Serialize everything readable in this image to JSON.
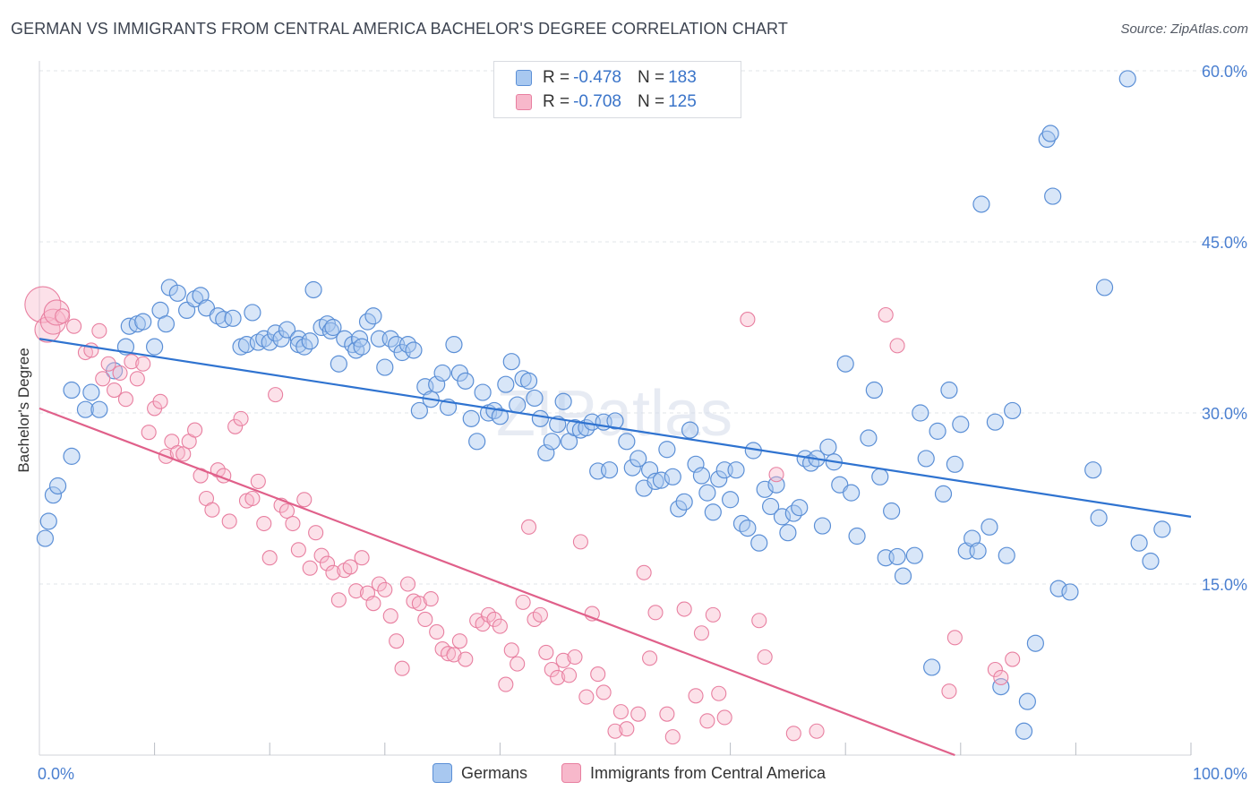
{
  "title": "GERMAN VS IMMIGRANTS FROM CENTRAL AMERICA BACHELOR'S DEGREE CORRELATION CHART",
  "source": "Source: ZipAtlas.com",
  "watermark": "ZIPatlas",
  "legend": {
    "rows": [
      {
        "r_label": "R =",
        "r_value": "-0.478",
        "n_label": "N =",
        "n_value": "183",
        "color": "#a8c8f0"
      },
      {
        "r_label": "R =",
        "r_value": "-0.708",
        "n_label": "N =",
        "n_value": "125",
        "color": "#f7b8cb"
      }
    ]
  },
  "bottom_legend": [
    "Germans",
    "Immigrants from Central America"
  ],
  "colors": {
    "blue_fill": "#a8c8f0",
    "blue_stroke": "#5b8fd6",
    "blue_line": "#2f73d0",
    "pink_fill": "#f7b8cb",
    "pink_stroke": "#e87fa0",
    "pink_line": "#e0608a",
    "axis_text": "#4a7fd0",
    "grid": "#e2e4e8"
  },
  "chart_data": {
    "type": "scatter",
    "title": "GERMAN VS IMMIGRANTS FROM CENTRAL AMERICA BACHELOR'S DEGREE CORRELATION CHART",
    "xlabel": "",
    "ylabel": "Bachelor's Degree",
    "xlim": [
      0,
      100
    ],
    "ylim": [
      0,
      60
    ],
    "x_tick_labels": [
      "0.0%",
      "100.0%"
    ],
    "y_ticks": [
      15,
      30,
      45,
      60
    ],
    "y_tick_labels": [
      "15.0%",
      "30.0%",
      "45.0%",
      "60.0%"
    ],
    "grid": true,
    "legend_position": "top-center",
    "series": [
      {
        "name": "Germans",
        "r": -0.478,
        "n": 183,
        "trend": {
          "x": [
            0,
            100
          ],
          "y": [
            36.5,
            20.9
          ]
        },
        "points": [
          [
            0.5,
            19.0
          ],
          [
            0.8,
            20.5
          ],
          [
            1.2,
            22.8
          ],
          [
            1.6,
            23.6
          ],
          [
            2.8,
            26.2
          ],
          [
            2.8,
            32.0
          ],
          [
            4.0,
            30.3
          ],
          [
            4.5,
            31.8
          ],
          [
            5.2,
            30.3
          ],
          [
            6.5,
            33.7
          ],
          [
            7.5,
            35.8
          ],
          [
            7.8,
            37.6
          ],
          [
            8.5,
            37.8
          ],
          [
            9.0,
            38.0
          ],
          [
            10.0,
            35.8
          ],
          [
            10.5,
            39.0
          ],
          [
            11.0,
            37.8
          ],
          [
            11.3,
            41.0
          ],
          [
            12.0,
            40.5
          ],
          [
            12.8,
            39.0
          ],
          [
            13.5,
            40.0
          ],
          [
            14.0,
            40.3
          ],
          [
            14.5,
            39.2
          ],
          [
            15.5,
            38.5
          ],
          [
            16.0,
            38.2
          ],
          [
            16.8,
            38.3
          ],
          [
            17.5,
            35.8
          ],
          [
            18.0,
            36.0
          ],
          [
            18.5,
            38.8
          ],
          [
            19.0,
            36.2
          ],
          [
            19.5,
            36.5
          ],
          [
            20.0,
            36.2
          ],
          [
            20.5,
            37.0
          ],
          [
            21.0,
            36.5
          ],
          [
            21.5,
            37.3
          ],
          [
            22.5,
            36.5
          ],
          [
            22.5,
            36.0
          ],
          [
            23.0,
            35.8
          ],
          [
            23.5,
            36.3
          ],
          [
            23.8,
            40.8
          ],
          [
            24.5,
            37.5
          ],
          [
            25.0,
            37.8
          ],
          [
            25.3,
            37.2
          ],
          [
            25.5,
            37.5
          ],
          [
            26.0,
            34.3
          ],
          [
            26.5,
            36.5
          ],
          [
            27.2,
            36.0
          ],
          [
            27.5,
            35.5
          ],
          [
            27.8,
            36.5
          ],
          [
            28.0,
            35.8
          ],
          [
            28.5,
            38.0
          ],
          [
            29.0,
            38.5
          ],
          [
            29.5,
            36.5
          ],
          [
            30.0,
            34.0
          ],
          [
            30.5,
            36.5
          ],
          [
            31.0,
            36.0
          ],
          [
            31.5,
            35.3
          ],
          [
            32.0,
            36.0
          ],
          [
            32.5,
            35.5
          ],
          [
            33.0,
            30.2
          ],
          [
            33.5,
            32.3
          ],
          [
            34.0,
            31.2
          ],
          [
            34.5,
            32.5
          ],
          [
            35.0,
            33.5
          ],
          [
            35.5,
            30.5
          ],
          [
            36.0,
            36.0
          ],
          [
            36.5,
            33.5
          ],
          [
            37.0,
            32.8
          ],
          [
            37.5,
            29.5
          ],
          [
            38.0,
            27.5
          ],
          [
            38.5,
            31.8
          ],
          [
            39.0,
            30.0
          ],
          [
            39.5,
            30.2
          ],
          [
            40.0,
            29.7
          ],
          [
            40.5,
            32.5
          ],
          [
            41.0,
            34.5
          ],
          [
            41.5,
            30.7
          ],
          [
            42.0,
            33.0
          ],
          [
            42.5,
            32.8
          ],
          [
            43.0,
            31.3
          ],
          [
            43.5,
            29.5
          ],
          [
            44.0,
            26.5
          ],
          [
            44.5,
            27.5
          ],
          [
            45.0,
            29.0
          ],
          [
            45.5,
            31.0
          ],
          [
            46.0,
            27.5
          ],
          [
            46.5,
            28.7
          ],
          [
            47.0,
            28.5
          ],
          [
            47.5,
            28.7
          ],
          [
            48.0,
            29.2
          ],
          [
            48.5,
            24.9
          ],
          [
            49.0,
            29.2
          ],
          [
            49.5,
            25.0
          ],
          [
            50.0,
            29.3
          ],
          [
            51.0,
            27.5
          ],
          [
            51.5,
            25.2
          ],
          [
            52.0,
            26.0
          ],
          [
            52.5,
            23.4
          ],
          [
            53.0,
            25.0
          ],
          [
            53.5,
            24.0
          ],
          [
            54.0,
            24.1
          ],
          [
            54.5,
            26.8
          ],
          [
            55.0,
            24.4
          ],
          [
            55.5,
            21.6
          ],
          [
            56.0,
            22.2
          ],
          [
            56.5,
            28.5
          ],
          [
            57.0,
            25.5
          ],
          [
            57.5,
            24.5
          ],
          [
            58.0,
            23.0
          ],
          [
            58.5,
            21.3
          ],
          [
            59.0,
            24.2
          ],
          [
            59.5,
            25.0
          ],
          [
            60.0,
            22.4
          ],
          [
            60.5,
            25.0
          ],
          [
            61.0,
            20.3
          ],
          [
            61.5,
            19.9
          ],
          [
            62.0,
            26.7
          ],
          [
            62.5,
            18.6
          ],
          [
            63.0,
            23.3
          ],
          [
            63.5,
            21.8
          ],
          [
            64.0,
            23.7
          ],
          [
            64.5,
            20.9
          ],
          [
            65.0,
            19.5
          ],
          [
            65.5,
            21.2
          ],
          [
            66.0,
            21.7
          ],
          [
            66.5,
            26.0
          ],
          [
            67.0,
            25.6
          ],
          [
            67.5,
            26.0
          ],
          [
            68.0,
            20.1
          ],
          [
            68.5,
            27.0
          ],
          [
            69.0,
            25.7
          ],
          [
            69.5,
            23.7
          ],
          [
            70.0,
            34.3
          ],
          [
            70.5,
            23.0
          ],
          [
            71.0,
            19.2
          ],
          [
            72.0,
            27.8
          ],
          [
            72.5,
            32.0
          ],
          [
            73.0,
            24.4
          ],
          [
            73.5,
            17.3
          ],
          [
            74.0,
            21.4
          ],
          [
            74.5,
            17.4
          ],
          [
            75.0,
            15.7
          ],
          [
            76.0,
            17.5
          ],
          [
            76.5,
            30.0
          ],
          [
            77.0,
            26.0
          ],
          [
            77.5,
            7.7
          ],
          [
            78.0,
            28.4
          ],
          [
            78.5,
            22.9
          ],
          [
            79.0,
            32.0
          ],
          [
            79.5,
            25.5
          ],
          [
            80.0,
            29.0
          ],
          [
            80.5,
            17.9
          ],
          [
            81.0,
            19.0
          ],
          [
            81.5,
            17.9
          ],
          [
            81.8,
            48.3
          ],
          [
            82.5,
            20.0
          ],
          [
            83.0,
            29.2
          ],
          [
            83.5,
            6.0
          ],
          [
            84.0,
            17.5
          ],
          [
            84.5,
            30.2
          ],
          [
            85.5,
            2.1
          ],
          [
            85.8,
            4.7
          ],
          [
            86.5,
            9.8
          ],
          [
            87.5,
            54.0
          ],
          [
            87.8,
            54.5
          ],
          [
            88.0,
            49.0
          ],
          [
            88.5,
            14.6
          ],
          [
            89.5,
            14.3
          ],
          [
            91.5,
            25.0
          ],
          [
            92.0,
            20.8
          ],
          [
            92.5,
            41.0
          ],
          [
            94.5,
            59.3
          ],
          [
            95.5,
            18.6
          ],
          [
            96.5,
            17.0
          ],
          [
            97.5,
            19.8
          ]
        ]
      },
      {
        "name": "Immigrants from Central America",
        "r": -0.708,
        "n": 125,
        "trend": {
          "x": [
            0,
            79.5
          ],
          "y": [
            30.4,
            0
          ]
        },
        "points": [
          [
            0.3,
            39.5
          ],
          [
            0.7,
            37.3
          ],
          [
            1.2,
            38.0
          ],
          [
            1.5,
            38.8
          ],
          [
            2.0,
            38.5
          ],
          [
            3.0,
            37.6
          ],
          [
            4.0,
            35.3
          ],
          [
            4.5,
            35.5
          ],
          [
            5.2,
            37.2
          ],
          [
            5.5,
            33.0
          ],
          [
            6.0,
            34.3
          ],
          [
            6.5,
            32.0
          ],
          [
            7.0,
            33.5
          ],
          [
            7.5,
            31.2
          ],
          [
            8.0,
            34.5
          ],
          [
            8.5,
            33.0
          ],
          [
            9.0,
            34.3
          ],
          [
            9.5,
            28.3
          ],
          [
            10.0,
            30.4
          ],
          [
            10.5,
            31.0
          ],
          [
            11.0,
            26.2
          ],
          [
            11.5,
            27.5
          ],
          [
            12.0,
            26.5
          ],
          [
            12.5,
            26.4
          ],
          [
            13.0,
            27.5
          ],
          [
            13.5,
            28.5
          ],
          [
            14.0,
            24.5
          ],
          [
            14.5,
            22.5
          ],
          [
            15.0,
            21.5
          ],
          [
            15.5,
            25.0
          ],
          [
            16.0,
            24.5
          ],
          [
            16.5,
            20.5
          ],
          [
            17.0,
            28.8
          ],
          [
            17.5,
            29.5
          ],
          [
            18.0,
            22.3
          ],
          [
            18.5,
            22.5
          ],
          [
            19.0,
            24.0
          ],
          [
            19.5,
            20.3
          ],
          [
            20.0,
            17.3
          ],
          [
            20.5,
            31.6
          ],
          [
            21.0,
            21.9
          ],
          [
            21.5,
            21.4
          ],
          [
            22.0,
            20.3
          ],
          [
            22.5,
            18.0
          ],
          [
            23.0,
            22.4
          ],
          [
            23.5,
            16.4
          ],
          [
            24.0,
            19.5
          ],
          [
            24.5,
            17.5
          ],
          [
            25.0,
            16.8
          ],
          [
            25.5,
            16.0
          ],
          [
            26.0,
            13.6
          ],
          [
            26.5,
            16.2
          ],
          [
            27.0,
            16.5
          ],
          [
            27.5,
            14.4
          ],
          [
            28.0,
            17.3
          ],
          [
            28.5,
            14.2
          ],
          [
            29.0,
            13.3
          ],
          [
            29.5,
            15.0
          ],
          [
            30.0,
            14.5
          ],
          [
            30.5,
            12.2
          ],
          [
            31.0,
            10.0
          ],
          [
            31.5,
            7.6
          ],
          [
            32.0,
            15.0
          ],
          [
            32.5,
            13.5
          ],
          [
            33.0,
            13.3
          ],
          [
            33.5,
            11.9
          ],
          [
            34.0,
            13.7
          ],
          [
            34.5,
            10.8
          ],
          [
            35.0,
            9.3
          ],
          [
            35.5,
            8.9
          ],
          [
            36.0,
            8.8
          ],
          [
            36.5,
            10.0
          ],
          [
            37.0,
            8.4
          ],
          [
            38.0,
            11.8
          ],
          [
            38.5,
            11.5
          ],
          [
            39.0,
            12.3
          ],
          [
            39.5,
            11.9
          ],
          [
            40.0,
            11.3
          ],
          [
            40.5,
            6.2
          ],
          [
            41.0,
            9.2
          ],
          [
            41.5,
            8.0
          ],
          [
            42.0,
            13.4
          ],
          [
            42.5,
            20.0
          ],
          [
            43.0,
            11.9
          ],
          [
            43.5,
            12.3
          ],
          [
            44.0,
            9.0
          ],
          [
            44.5,
            7.5
          ],
          [
            45.0,
            6.8
          ],
          [
            45.5,
            8.3
          ],
          [
            46.0,
            7.0
          ],
          [
            46.5,
            8.6
          ],
          [
            47.0,
            18.7
          ],
          [
            47.5,
            5.1
          ],
          [
            48.0,
            12.4
          ],
          [
            48.5,
            7.1
          ],
          [
            49.0,
            5.5
          ],
          [
            50.0,
            2.1
          ],
          [
            50.5,
            3.8
          ],
          [
            51.0,
            2.3
          ],
          [
            52.0,
            3.6
          ],
          [
            52.5,
            16.0
          ],
          [
            53.0,
            8.5
          ],
          [
            53.5,
            12.5
          ],
          [
            54.5,
            3.6
          ],
          [
            55.0,
            1.6
          ],
          [
            56.0,
            12.8
          ],
          [
            57.0,
            5.2
          ],
          [
            57.5,
            10.7
          ],
          [
            58.0,
            3.0
          ],
          [
            58.5,
            12.3
          ],
          [
            59.0,
            5.4
          ],
          [
            59.5,
            3.3
          ],
          [
            61.5,
            38.2
          ],
          [
            62.5,
            11.8
          ],
          [
            63.0,
            8.6
          ],
          [
            64.0,
            24.6
          ],
          [
            65.5,
            1.9
          ],
          [
            67.5,
            2.1
          ],
          [
            73.5,
            38.6
          ],
          [
            74.5,
            35.9
          ],
          [
            79.0,
            5.6
          ],
          [
            79.5,
            10.3
          ],
          [
            83.0,
            7.5
          ],
          [
            83.5,
            6.8
          ],
          [
            84.5,
            8.4
          ]
        ]
      }
    ]
  }
}
